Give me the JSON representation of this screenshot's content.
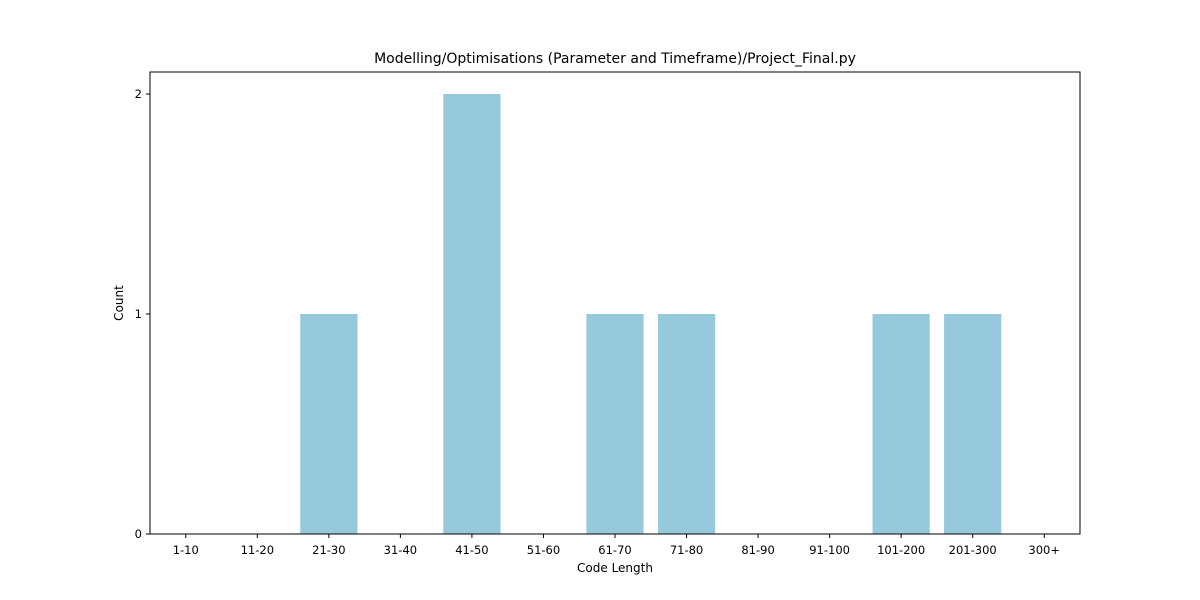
{
  "chart_data": {
    "type": "bar",
    "title": "Modelling/Optimisations (Parameter and Timeframe)/Project_Final.py",
    "xlabel": "Code Length",
    "ylabel": "Count",
    "categories": [
      "1-10",
      "11-20",
      "21-30",
      "31-40",
      "41-50",
      "51-60",
      "61-70",
      "71-80",
      "81-90",
      "91-100",
      "101-200",
      "201-300",
      "300+"
    ],
    "values": [
      0,
      0,
      1,
      0,
      2,
      0,
      1,
      1,
      0,
      0,
      1,
      1,
      0
    ],
    "ylim": [
      0,
      2.1
    ],
    "yticks": [
      0,
      1,
      2
    ],
    "bar_color": "#96c9dc",
    "grid": false,
    "legend": "none"
  }
}
